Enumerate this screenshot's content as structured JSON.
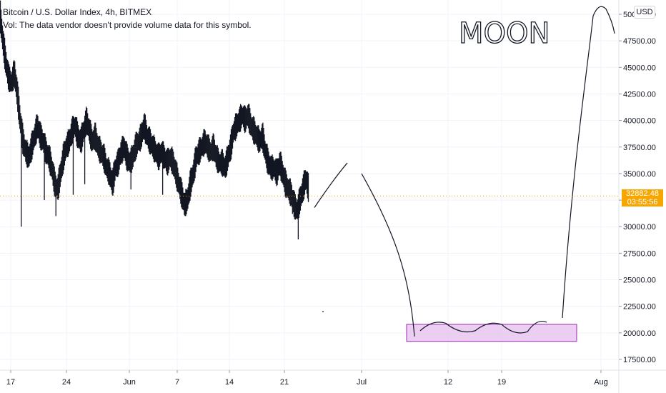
{
  "header": {
    "title": "Bitcoin / U.S. Dollar Index, 4h, BITMEX",
    "vol_note": "Vol: The data vendor doesn't provide volume data for this symbol."
  },
  "currency_button": "USD",
  "current_price": {
    "value": "32882.48",
    "countdown": "03:55:56",
    "color": "#f7a600"
  },
  "annotation_text": "MOON",
  "colors": {
    "bars": "#131722",
    "box_fill": "#e7c6ef",
    "box_stroke": "#9c27b0",
    "grid": "#f0f3fa"
  },
  "chart_data": {
    "type": "ohlc",
    "symbol": "Bitcoin / U.S. Dollar Index",
    "interval": "4h",
    "exchange": "BITMEX",
    "ylim": [
      15800,
      51800
    ],
    "yticks": [
      17500,
      20000,
      22500,
      25000,
      27500,
      30000,
      32500,
      35000,
      37500,
      40000,
      42500,
      45000,
      47500,
      50000
    ],
    "ytick_labels": [
      "17500.00",
      "20000.00",
      "22500.00",
      "25000.00",
      "27500.00",
      "30000.00",
      "32500.00",
      "35000.00",
      "37500.00",
      "40000.00",
      "42500.00",
      "45000.00",
      "47500.00",
      "50000.00"
    ],
    "xticks": [
      "17",
      "24",
      "Jun",
      "7",
      "14",
      "21",
      "Jul",
      "12",
      "19",
      "Aug"
    ],
    "price_path": [
      [
        0,
        50000
      ],
      [
        1,
        47500
      ],
      [
        2,
        45500
      ],
      [
        3,
        44000
      ],
      [
        4,
        43500
      ],
      [
        5,
        44500
      ],
      [
        6,
        42500
      ],
      [
        7,
        40000
      ],
      [
        8,
        38000
      ],
      [
        9,
        37000
      ],
      [
        10,
        36500
      ],
      [
        11,
        37500
      ],
      [
        12,
        38500
      ],
      [
        13,
        39500
      ],
      [
        14,
        38500
      ],
      [
        15,
        38000
      ],
      [
        16,
        37000
      ],
      [
        17,
        36500
      ],
      [
        18,
        35500
      ],
      [
        19,
        34000
      ],
      [
        20,
        33500
      ],
      [
        21,
        35000
      ],
      [
        22,
        36500
      ],
      [
        23,
        37500
      ],
      [
        24,
        38000
      ],
      [
        25,
        39000
      ],
      [
        26,
        39500
      ],
      [
        27,
        38500
      ],
      [
        28,
        38000
      ],
      [
        29,
        39000
      ],
      [
        30,
        40000
      ],
      [
        31,
        39000
      ],
      [
        32,
        38000
      ],
      [
        33,
        38500
      ],
      [
        34,
        37500
      ],
      [
        35,
        37000
      ],
      [
        36,
        36500
      ],
      [
        37,
        35500
      ],
      [
        38,
        35000
      ],
      [
        39,
        34000
      ],
      [
        40,
        35500
      ],
      [
        41,
        36000
      ],
      [
        42,
        37000
      ],
      [
        43,
        37500
      ],
      [
        44,
        36500
      ],
      [
        45,
        36000
      ],
      [
        46,
        36500
      ],
      [
        47,
        37500
      ],
      [
        48,
        38000
      ],
      [
        49,
        38500
      ],
      [
        50,
        39500
      ],
      [
        51,
        38500
      ],
      [
        52,
        38000
      ],
      [
        53,
        37500
      ],
      [
        54,
        37000
      ],
      [
        55,
        36500
      ],
      [
        56,
        37000
      ],
      [
        57,
        36500
      ],
      [
        58,
        36000
      ],
      [
        59,
        36500
      ],
      [
        60,
        36000
      ],
      [
        61,
        35000
      ],
      [
        62,
        34000
      ],
      [
        63,
        33000
      ],
      [
        64,
        32000
      ],
      [
        65,
        32500
      ],
      [
        66,
        34000
      ],
      [
        67,
        35000
      ],
      [
        68,
        36500
      ],
      [
        69,
        37000
      ],
      [
        70,
        37500
      ],
      [
        71,
        38000
      ],
      [
        72,
        37500
      ],
      [
        73,
        37000
      ],
      [
        74,
        37500
      ],
      [
        75,
        36500
      ],
      [
        76,
        36000
      ],
      [
        77,
        36000
      ],
      [
        78,
        35500
      ],
      [
        79,
        36500
      ],
      [
        80,
        37500
      ],
      [
        81,
        39000
      ],
      [
        82,
        39500
      ],
      [
        83,
        40000
      ],
      [
        84,
        40500
      ],
      [
        85,
        40000
      ],
      [
        86,
        40500
      ],
      [
        87,
        39500
      ],
      [
        88,
        39000
      ],
      [
        89,
        38500
      ],
      [
        90,
        38000
      ],
      [
        91,
        38500
      ],
      [
        92,
        37000
      ],
      [
        93,
        36000
      ],
      [
        94,
        35500
      ],
      [
        95,
        35500
      ],
      [
        96,
        35000
      ],
      [
        97,
        36000
      ],
      [
        98,
        35000
      ],
      [
        99,
        34000
      ],
      [
        100,
        33500
      ],
      [
        101,
        33000
      ],
      [
        102,
        32000
      ],
      [
        103,
        31500
      ],
      [
        104,
        32500
      ],
      [
        105,
        33500
      ],
      [
        106,
        34500
      ],
      [
        107,
        33500
      ]
    ],
    "low_wicks": [
      [
        7,
        30000
      ],
      [
        15,
        32500
      ],
      [
        19,
        31000
      ],
      [
        25,
        33000
      ],
      [
        29,
        34000
      ],
      [
        45,
        33500
      ],
      [
        56,
        33000
      ],
      [
        64,
        31000
      ],
      [
        101,
        31200
      ],
      [
        103,
        28800
      ]
    ],
    "drawn_path": [
      [
        "Jun 24",
        31800
      ],
      [
        "Jun 28",
        34500
      ],
      [
        "Jun 30",
        36000
      ],
      [
        "Jul 1",
        35000
      ],
      [
        "Jul 8",
        20200
      ],
      [
        "Jul 12",
        20900
      ],
      [
        "Jul 16",
        20200
      ],
      [
        "Jul 19",
        20800
      ],
      [
        "Jul 23",
        20100
      ],
      [
        "Jul 25",
        21000
      ],
      [
        "Jul 28",
        35000
      ],
      [
        "Jul 31",
        49500
      ],
      [
        "Aug 1",
        50500
      ],
      [
        "Aug 2",
        49000
      ]
    ],
    "box_range": {
      "x_start": "Jul 8",
      "x_end": "Jul 25",
      "y_low": 19200,
      "y_high": 20800
    },
    "current_price": 32882.48
  }
}
